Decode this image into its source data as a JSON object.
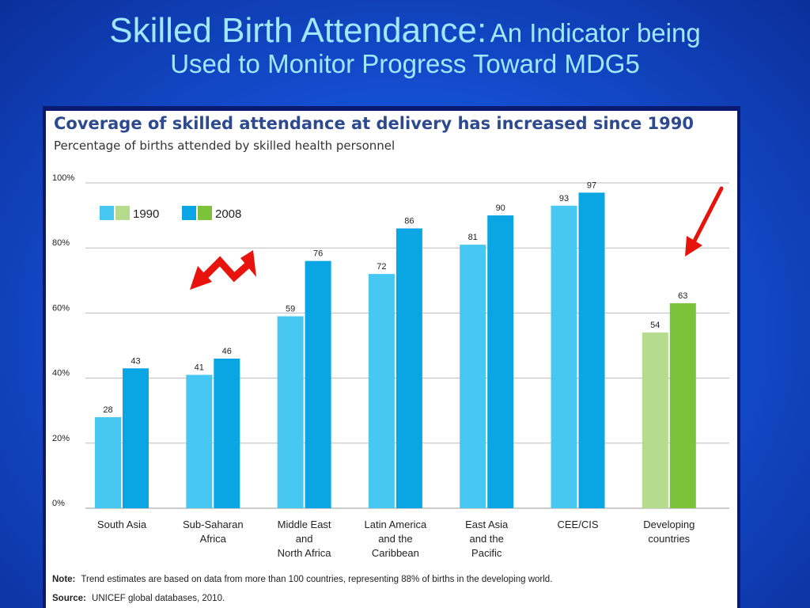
{
  "slide": {
    "title_main": "Skilled Birth Attendance:",
    "title_sub": "An Indicator being",
    "title_line2": "Used to Monitor Progress Toward MDG5"
  },
  "colors": {
    "series_1990": "#46c8f2",
    "series_2008": "#0aa6e4",
    "dev_1990": "#b5dc8c",
    "dev_2008": "#7cc23a",
    "arrow": "#e8130c"
  },
  "chart_data": {
    "type": "bar",
    "title": "Coverage of skilled attendance at delivery has increased since 1990",
    "subtitle": "Percentage of births attended by skilled health personnel",
    "categories": [
      [
        "South Asia"
      ],
      [
        "Sub-Saharan",
        "Africa"
      ],
      [
        "Middle East",
        "and",
        "North Africa"
      ],
      [
        "Latin America",
        "and the",
        "Caribbean"
      ],
      [
        "East Asia",
        "and the",
        "Pacific"
      ],
      [
        "CEE/CIS"
      ],
      [
        "Developing",
        "countries"
      ]
    ],
    "series": [
      {
        "name": "1990",
        "values": [
          28,
          41,
          59,
          72,
          81,
          93,
          54
        ]
      },
      {
        "name": "2008",
        "values": [
          43,
          46,
          76,
          86,
          90,
          97,
          63
        ]
      }
    ],
    "ylim": [
      0,
      100
    ],
    "yticks": [
      "0%",
      "20%",
      "40%",
      "60%",
      "80%",
      "100%"
    ],
    "grid": true,
    "legend_placement": "top-left",
    "note_label": "Note:",
    "note_text": "Trend estimates are based on data from more than 100 countries, representing 88% of births in the developing world.",
    "source_label": "Source:",
    "source_text": "UNICEF global databases, 2010."
  }
}
